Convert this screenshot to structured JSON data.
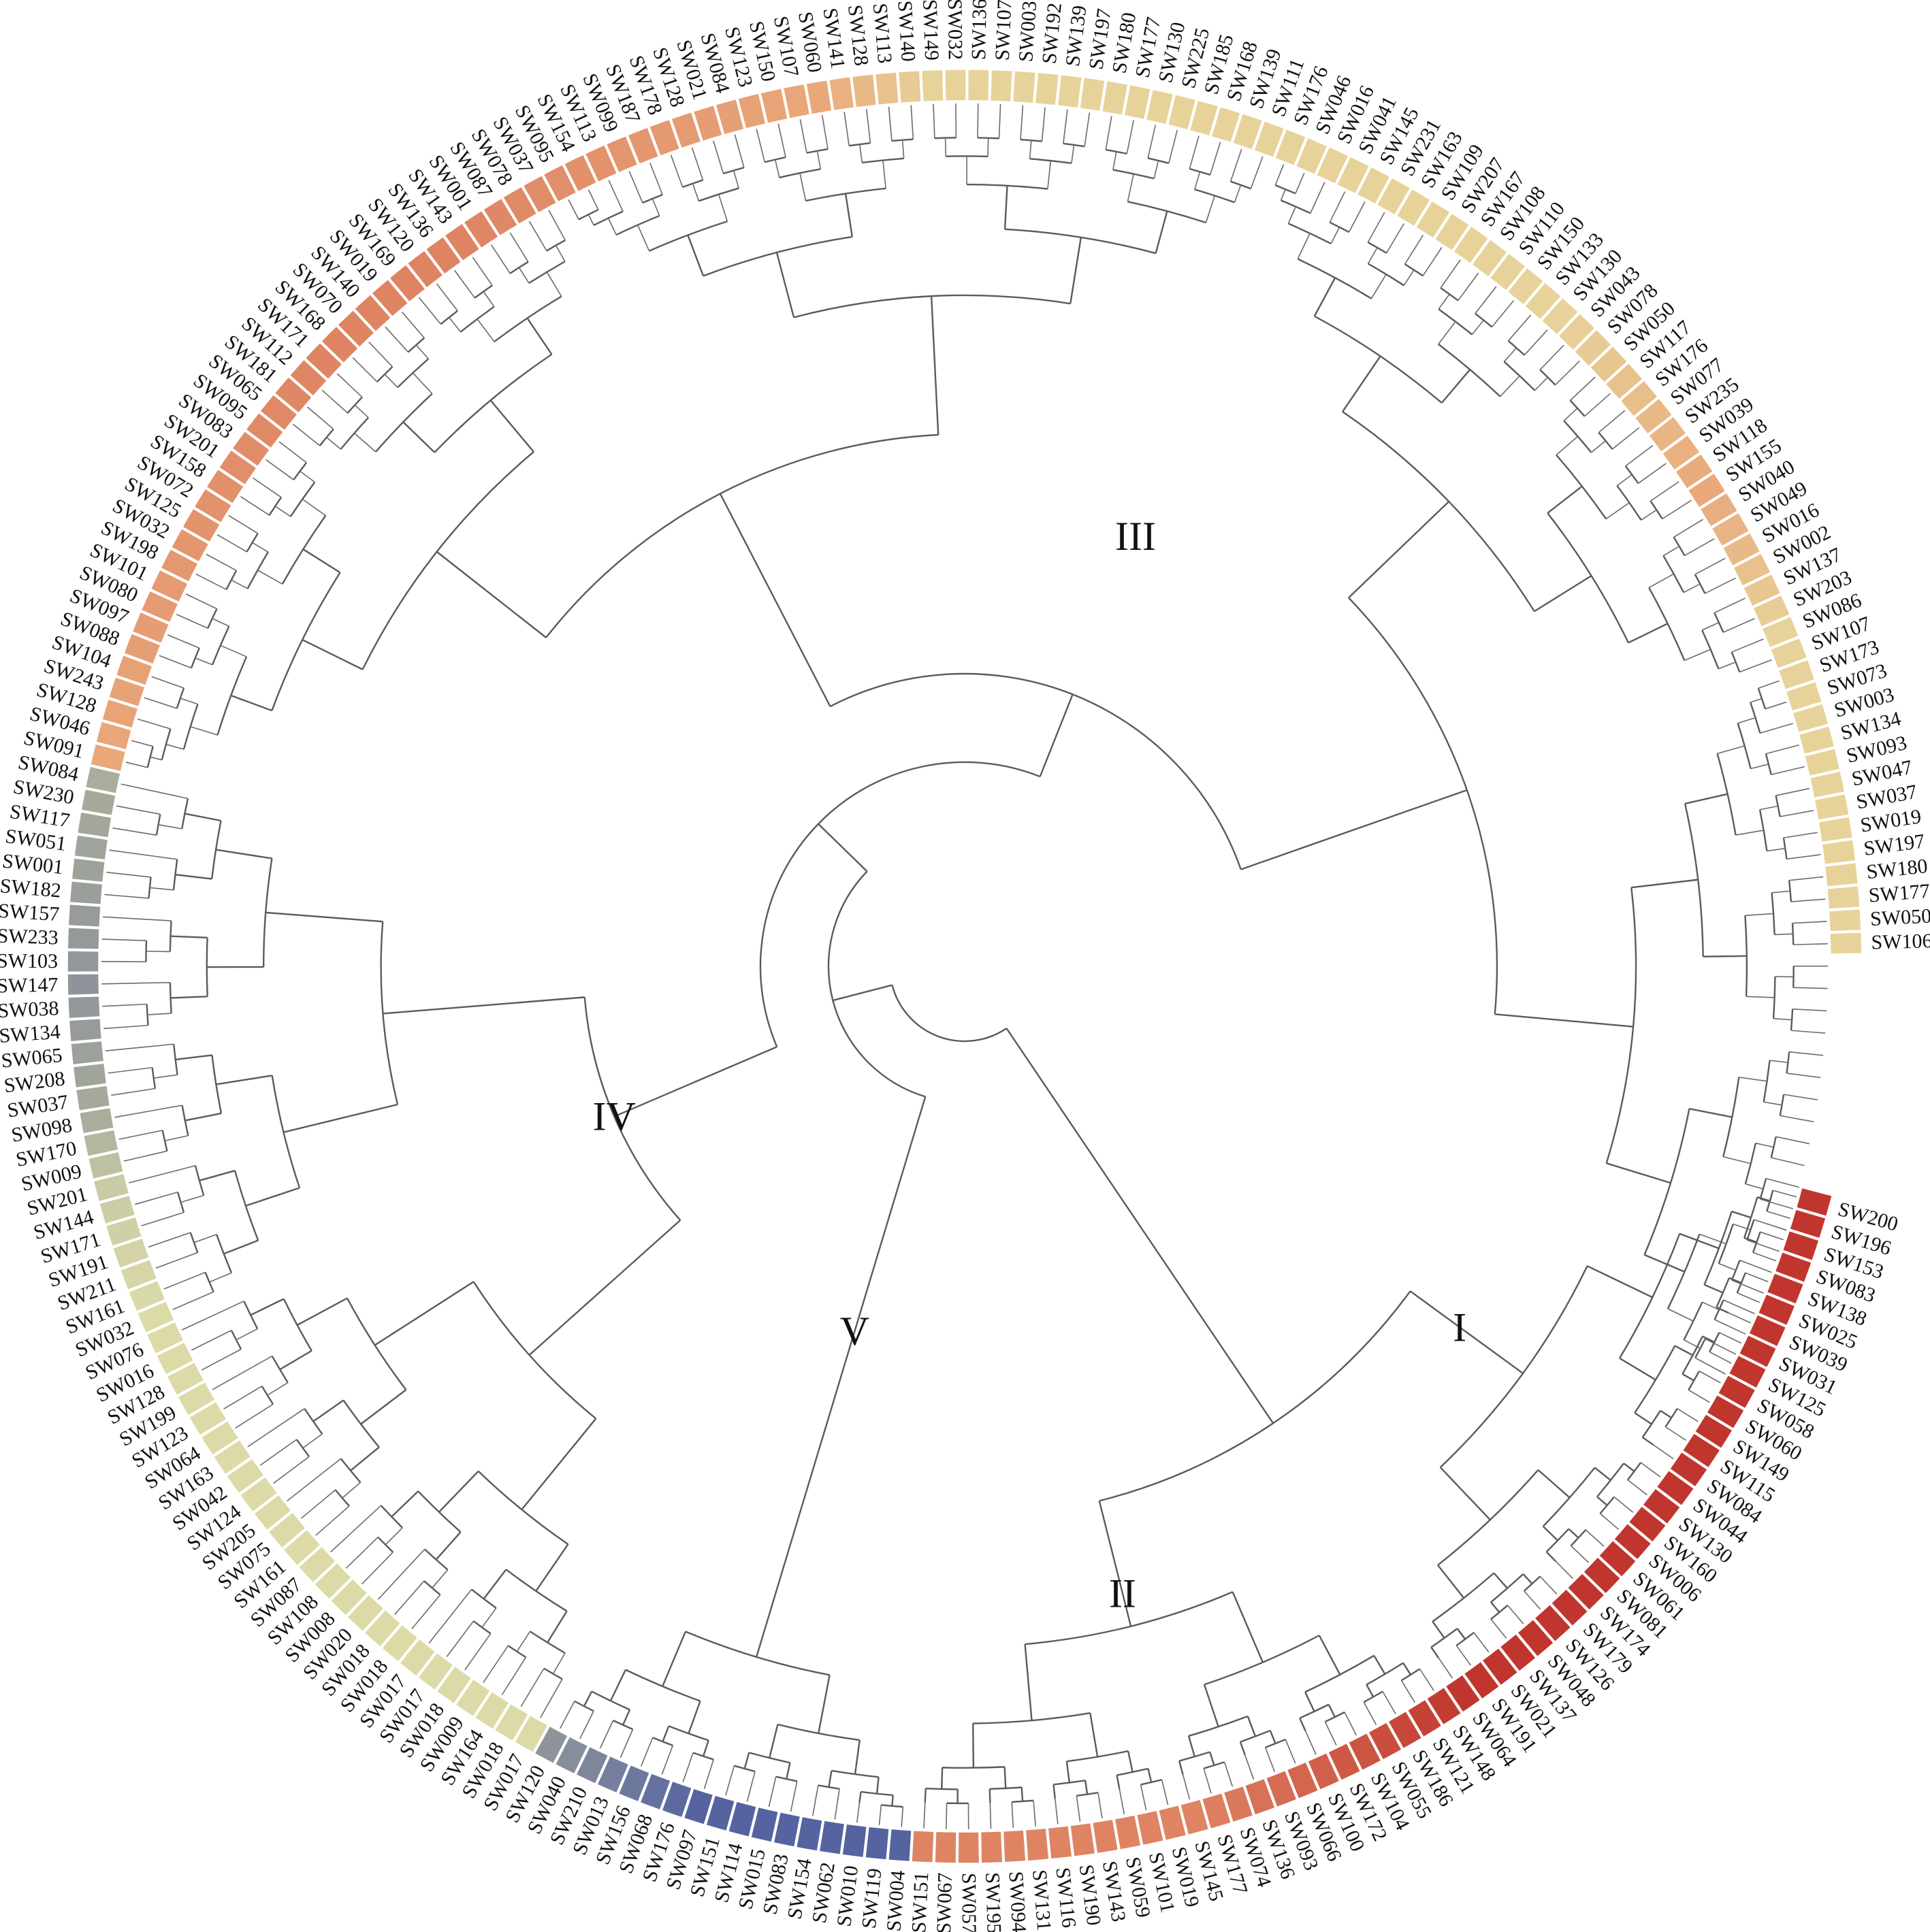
{
  "figure": {
    "type": "circular-dendrogram",
    "clades": [
      {
        "id": "I",
        "label": "I",
        "members": [
          "SW200",
          "SW196",
          "SW153",
          "SW083",
          "SW138",
          "SW025",
          "SW039",
          "SW031",
          "SW125",
          "SW058",
          "SW060",
          "SW149",
          "SW115",
          "SW084",
          "SW044",
          "SW130",
          "SW160",
          "SW006",
          "SW061",
          "SW081",
          "SW174",
          "SW179",
          "SW126",
          "SW048",
          "SW137",
          "SW021",
          "SW191",
          "SW064"
        ]
      },
      {
        "id": "II",
        "label": "II",
        "members": [
          "SW148",
          "SW121",
          "SW186",
          "SW055",
          "SW104",
          "SW172",
          "SW100",
          "SW066",
          "SW093",
          "SW136",
          "SW074",
          "SW177",
          "SW145",
          "SW019",
          "SW101",
          "SW059",
          "SW143",
          "SW190",
          "SW116",
          "SW131",
          "SW094",
          "SW195",
          "SW057",
          "SW067",
          "SW151"
        ]
      },
      {
        "id": "V",
        "label": "V",
        "members": [
          "SW004",
          "SW119",
          "SW010",
          "SW062",
          "SW154",
          "SW083",
          "SW015",
          "SW114",
          "SW151",
          "SW097",
          "SW176",
          "SW068",
          "SW156",
          "SW013",
          "SW210",
          "SW040",
          "SW120"
        ]
      },
      {
        "id": "IV",
        "label": "IV",
        "members": [
          "SW017",
          "SW018",
          "SW164",
          "SW009",
          "SW018",
          "SW017",
          "SW017",
          "SW018",
          "SW018",
          "SW020",
          "SW008",
          "SW108",
          "SW087",
          "SW161",
          "SW075",
          "SW205",
          "SW124",
          "SW042",
          "SW163",
          "SW064",
          "SW123",
          "SW199",
          "SW128",
          "SW016",
          "SW076",
          "SW032",
          "SW161",
          "SW211",
          "SW191",
          "SW171",
          "SW144",
          "SW201",
          "SW009",
          "SW170",
          "SW098",
          "SW037",
          "SW208",
          "SW065",
          "SW134",
          "SW038",
          "SW147",
          "SW103",
          "SW233",
          "SW157",
          "SW182",
          "SW001",
          "SW051",
          "SW117",
          "SW230",
          "SW084"
        ]
      },
      {
        "id": "III",
        "label": "III",
        "members": [
          "SW091",
          "SW046",
          "SW128",
          "SW243",
          "SW104",
          "SW088",
          "SW097",
          "SW080",
          "SW101",
          "SW198",
          "SW032",
          "SW125",
          "SW072",
          "SW158",
          "SW201",
          "SW083",
          "SW095",
          "SW065",
          "SW181",
          "SW112",
          "SW171",
          "SW168",
          "SW070",
          "SW140",
          "SW019",
          "SW169",
          "SW120",
          "SW136",
          "SW143",
          "SW001",
          "SW087",
          "SW078",
          "SW037",
          "SW095",
          "SW154",
          "SW113",
          "SW099",
          "SW187",
          "SW178",
          "SW128",
          "SW021",
          "SW084",
          "SW123",
          "SW150",
          "SW107",
          "SW060",
          "SW141",
          "SW128",
          "SW113",
          "SW140",
          "SW149",
          "SW032",
          "SW136",
          "SW107",
          "SW003",
          "SW192",
          "SW139",
          "SW197",
          "SW180",
          "SW177",
          "SW130",
          "SW225",
          "SW185",
          "SW168",
          "SW139",
          "SW111",
          "SW176",
          "SW046",
          "SW016",
          "SW041",
          "SW145",
          "SW231",
          "SW163",
          "SW109",
          "SW207",
          "SW167",
          "SW108",
          "SW110",
          "SW150",
          "SW133",
          "SW130",
          "SW043",
          "SW078",
          "SW050",
          "SW117",
          "SW176",
          "SW077",
          "SW235",
          "SW039",
          "SW118",
          "SW155",
          "SW040",
          "SW049",
          "SW016",
          "SW002",
          "SW137",
          "SW203",
          "SW086",
          "SW107",
          "SW173",
          "SW073",
          "SW003",
          "SW134",
          "SW093",
          "SW047",
          "SW037",
          "SW019",
          "SW197",
          "SW180",
          "SW177",
          "SW050",
          "SW106"
        ]
      }
    ],
    "tip_labels": [
      "SW200",
      "SW196",
      "SW153",
      "SW083",
      "SW138",
      "SW025",
      "SW039",
      "SW031",
      "SW125",
      "SW058",
      "SW060",
      "SW149",
      "SW115",
      "SW084",
      "SW044",
      "SW130",
      "SW160",
      "SW006",
      "SW061",
      "SW081",
      "SW174",
      "SW179",
      "SW126",
      "SW048",
      "SW137",
      "SW021",
      "SW191",
      "SW064",
      "SW148",
      "SW121",
      "SW186",
      "SW055",
      "SW104",
      "SW172",
      "SW100",
      "SW066",
      "SW093",
      "SW136",
      "SW074",
      "SW177",
      "SW145",
      "SW019",
      "SW101",
      "SW059",
      "SW143",
      "SW190",
      "SW116",
      "SW131",
      "SW094",
      "SW195",
      "SW057",
      "SW067",
      "SW151",
      "SW004",
      "SW119",
      "SW010",
      "SW062",
      "SW154",
      "SW083",
      "SW015",
      "SW114",
      "SW151",
      "SW097",
      "SW176",
      "SW068",
      "SW156",
      "SW013",
      "SW210",
      "SW040",
      "SW120",
      "SW017",
      "SW018",
      "SW164",
      "SW009",
      "SW018",
      "SW017",
      "SW017",
      "SW018",
      "SW018",
      "SW020",
      "SW008",
      "SW108",
      "SW087",
      "SW161",
      "SW075",
      "SW205",
      "SW124",
      "SW042",
      "SW163",
      "SW064",
      "SW123",
      "SW199",
      "SW128",
      "SW016",
      "SW076",
      "SW032",
      "SW161",
      "SW211",
      "SW191",
      "SW171",
      "SW144",
      "SW201",
      "SW009",
      "SW170",
      "SW098",
      "SW037",
      "SW208",
      "SW065",
      "SW134",
      "SW038",
      "SW147",
      "SW103",
      "SW233",
      "SW157",
      "SW182",
      "SW001",
      "SW051",
      "SW117",
      "SW230",
      "SW084",
      "SW091",
      "SW046",
      "SW128",
      "SW243",
      "SW104",
      "SW088",
      "SW097",
      "SW080",
      "SW101",
      "SW198",
      "SW032",
      "SW125",
      "SW072",
      "SW158",
      "SW201",
      "SW083",
      "SW095",
      "SW065",
      "SW181",
      "SW112",
      "SW171",
      "SW168",
      "SW070",
      "SW140",
      "SW019",
      "SW169",
      "SW120",
      "SW136",
      "SW143",
      "SW001",
      "SW087",
      "SW078",
      "SW037",
      "SW095",
      "SW154",
      "SW113",
      "SW099",
      "SW187",
      "SW178",
      "SW128",
      "SW021",
      "SW084",
      "SW123",
      "SW150",
      "SW107",
      "SW060",
      "SW141",
      "SW128",
      "SW113",
      "SW140",
      "SW149",
      "SW032",
      "SW136",
      "SW107",
      "SW003",
      "SW192",
      "SW139",
      "SW197",
      "SW180",
      "SW177",
      "SW130",
      "SW225",
      "SW185",
      "SW168",
      "SW139",
      "SW111",
      "SW176",
      "SW046",
      "SW016",
      "SW041",
      "SW145",
      "SW231",
      "SW163",
      "SW109",
      "SW207",
      "SW167",
      "SW108",
      "SW110",
      "SW150",
      "SW133",
      "SW130",
      "SW043",
      "SW078",
      "SW050",
      "SW117",
      "SW176",
      "SW077",
      "SW235",
      "SW039",
      "SW118",
      "SW155",
      "SW040",
      "SW049",
      "SW016",
      "SW002",
      "SW137",
      "SW203",
      "SW086",
      "SW107",
      "SW173",
      "SW073",
      "SW003",
      "SW134",
      "SW093",
      "SW047",
      "SW037",
      "SW019",
      "SW197",
      "SW180",
      "SW177",
      "SW050",
      "SW106"
    ],
    "tile_colors": {
      "red": "#c0362e",
      "salmon": "#de8463",
      "peach": "#e9a87a",
      "sand": "#e7d39a",
      "pale": "#dcdba8",
      "olive": "#c9caa6",
      "sage": "#a9ad9b",
      "grey": "#8e949a",
      "slate": "#7c88a6",
      "navy": "#5563a0"
    },
    "line_color": "#5e5a58"
  }
}
